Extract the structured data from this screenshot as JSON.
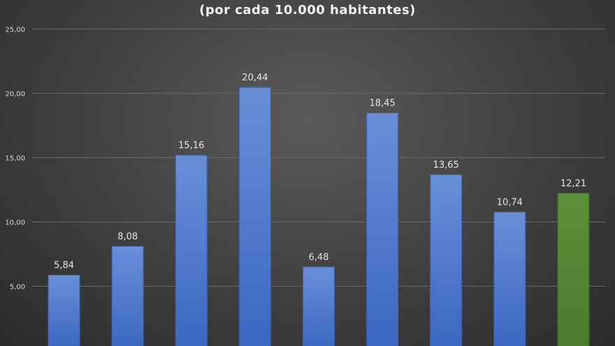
{
  "chart_data": {
    "type": "bar",
    "title": "",
    "subtitle": "(por cada 10.000 habitantes)",
    "xlabel": "",
    "ylabel": "",
    "categories": [
      "",
      "",
      "",
      "",
      "",
      "",
      "",
      "",
      ""
    ],
    "values": [
      5.84,
      8.08,
      15.16,
      20.44,
      6.48,
      18.45,
      13.65,
      10.74,
      12.21
    ],
    "value_labels": [
      "5,84",
      "8,08",
      "15,16",
      "20,44",
      "6,48",
      "18,45",
      "13,65",
      "10,74",
      "12,21"
    ],
    "y_ticks": [
      5,
      10,
      15,
      20,
      25
    ],
    "y_tick_labels": [
      "5,00",
      "10,00",
      "15,00",
      "20,00",
      "25,00"
    ],
    "ylim": [
      0,
      25
    ],
    "grid": true,
    "legend": "none",
    "colors": {
      "bar": "#4472c4",
      "highlight_bar": "#548235",
      "highlight_index": 8,
      "text": "#e6e6e6",
      "grid": "#6a6a6a"
    }
  }
}
